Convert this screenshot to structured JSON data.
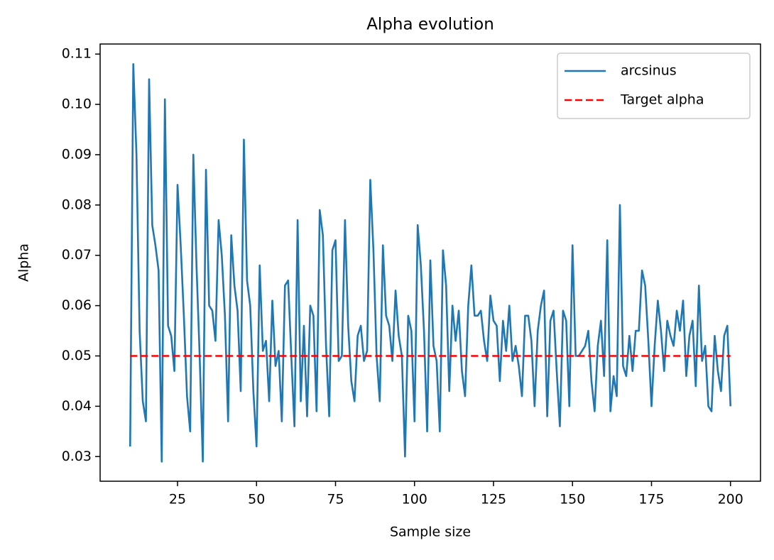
{
  "chart_data": {
    "type": "line",
    "title": "Alpha evolution",
    "x_label": "Sample size",
    "y_label": "Alpha",
    "xlim": [
      0.5,
      209.5
    ],
    "ylim": [
      0.0251,
      0.112
    ],
    "xticks": [
      25,
      50,
      75,
      100,
      125,
      150,
      175,
      200
    ],
    "yticks": [
      0.03,
      0.04,
      0.05,
      0.06,
      0.07,
      0.08,
      0.09,
      {
        "value": 0.1,
        "label": "0.10"
      },
      0.11
    ],
    "grid": false,
    "legend": "upper right",
    "series": [
      {
        "name": "arcsinus",
        "color": "#1f77b4",
        "style": "solid",
        "x": [
          10,
          11,
          12,
          13,
          14,
          15,
          16,
          17,
          18,
          19,
          20,
          21,
          22,
          23,
          24,
          25,
          26,
          27,
          28,
          29,
          30,
          31,
          32,
          33,
          34,
          35,
          36,
          37,
          38,
          39,
          40,
          41,
          42,
          43,
          44,
          45,
          46,
          47,
          48,
          49,
          50,
          51,
          52,
          53,
          54,
          55,
          56,
          57,
          58,
          59,
          60,
          61,
          62,
          63,
          64,
          65,
          66,
          67,
          68,
          69,
          70,
          71,
          72,
          73,
          74,
          75,
          76,
          77,
          78,
          79,
          80,
          81,
          82,
          83,
          84,
          85,
          86,
          87,
          88,
          89,
          90,
          91,
          92,
          93,
          94,
          95,
          96,
          97,
          98,
          99,
          100,
          101,
          102,
          103,
          104,
          105,
          106,
          107,
          108,
          109,
          110,
          111,
          112,
          113,
          114,
          115,
          116,
          117,
          118,
          119,
          120,
          121,
          122,
          123,
          124,
          125,
          126,
          127,
          128,
          129,
          130,
          131,
          132,
          133,
          134,
          135,
          136,
          137,
          138,
          139,
          140,
          141,
          142,
          143,
          144,
          145,
          146,
          147,
          148,
          149,
          150,
          151,
          152,
          153,
          154,
          155,
          156,
          157,
          158,
          159,
          160,
          161,
          162,
          163,
          164,
          165,
          166,
          167,
          168,
          169,
          170,
          171,
          172,
          173,
          174,
          175,
          176,
          177,
          178,
          179,
          180,
          181,
          182,
          183,
          184,
          185,
          186,
          187,
          188,
          189,
          190,
          191,
          192,
          193,
          194,
          195,
          196,
          197,
          198,
          199,
          200
        ],
        "values": [
          0.032,
          0.108,
          0.09,
          0.055,
          0.041,
          0.037,
          0.105,
          0.076,
          0.072,
          0.067,
          0.029,
          0.101,
          0.056,
          0.054,
          0.047,
          0.084,
          0.072,
          0.058,
          0.042,
          0.035,
          0.09,
          0.068,
          0.05,
          0.029,
          0.087,
          0.06,
          0.059,
          0.053,
          0.077,
          0.07,
          0.058,
          0.037,
          0.074,
          0.064,
          0.059,
          0.043,
          0.093,
          0.065,
          0.06,
          0.043,
          0.032,
          0.068,
          0.051,
          0.053,
          0.041,
          0.061,
          0.048,
          0.051,
          0.037,
          0.064,
          0.065,
          0.05,
          0.036,
          0.077,
          0.041,
          0.056,
          0.038,
          0.06,
          0.058,
          0.039,
          0.079,
          0.074,
          0.052,
          0.038,
          0.071,
          0.073,
          0.049,
          0.05,
          0.077,
          0.056,
          0.045,
          0.041,
          0.054,
          0.056,
          0.049,
          0.051,
          0.085,
          0.071,
          0.05,
          0.041,
          0.072,
          0.058,
          0.056,
          0.049,
          0.063,
          0.054,
          0.05,
          0.03,
          0.058,
          0.055,
          0.037,
          0.076,
          0.068,
          0.055,
          0.035,
          0.069,
          0.052,
          0.049,
          0.035,
          0.071,
          0.064,
          0.043,
          0.06,
          0.053,
          0.059,
          0.047,
          0.042,
          0.06,
          0.068,
          0.058,
          0.058,
          0.059,
          0.053,
          0.049,
          0.062,
          0.057,
          0.056,
          0.045,
          0.057,
          0.051,
          0.06,
          0.049,
          0.052,
          0.048,
          0.042,
          0.058,
          0.058,
          0.053,
          0.04,
          0.055,
          0.06,
          0.063,
          0.038,
          0.057,
          0.059,
          0.047,
          0.036,
          0.059,
          0.057,
          0.04,
          0.072,
          0.05,
          0.05,
          0.051,
          0.052,
          0.055,
          0.045,
          0.039,
          0.052,
          0.057,
          0.046,
          0.073,
          0.039,
          0.046,
          0.042,
          0.08,
          0.048,
          0.046,
          0.054,
          0.047,
          0.055,
          0.055,
          0.067,
          0.064,
          0.053,
          0.04,
          0.052,
          0.061,
          0.055,
          0.047,
          0.057,
          0.054,
          0.052,
          0.059,
          0.055,
          0.061,
          0.046,
          0.054,
          0.057,
          0.044,
          0.064,
          0.049,
          0.052,
          0.04,
          0.039,
          0.054,
          0.047,
          0.043,
          0.054,
          0.056,
          0.04
        ]
      },
      {
        "name": "Target alpha",
        "color": "#ff0000",
        "style": "dashed",
        "x": [
          10,
          200
        ],
        "values": [
          0.05,
          0.05
        ]
      }
    ]
  }
}
